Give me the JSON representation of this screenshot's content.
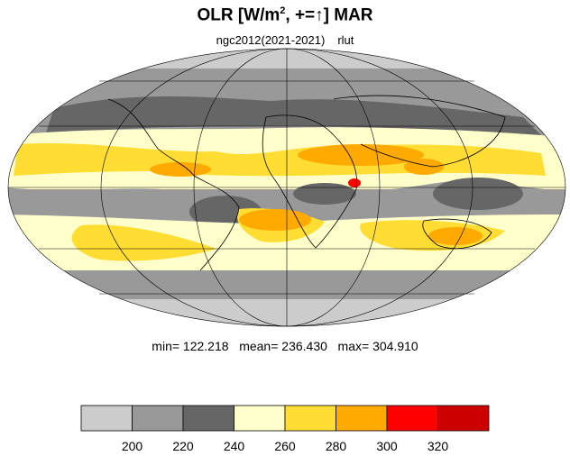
{
  "title": {
    "main": "OLR [W/m",
    "sup": "2",
    "rest": ", +=↑] MAR"
  },
  "subtitle": {
    "run": "ngc2012(2021-2021)",
    "variable": "rlut"
  },
  "stats": {
    "text": "min= 122.218   mean= 236.430   max= 304.910",
    "min": 122.218,
    "mean": 236.43,
    "max": 304.91
  },
  "map": {
    "projection": "mollweide",
    "field": "outgoing longwave radiation",
    "graticule": true
  },
  "colorbar": {
    "labels": [
      "200",
      "220",
      "240",
      "260",
      "280",
      "300",
      "320"
    ],
    "colors": [
      "#cccccc",
      "#999999",
      "#666666",
      "#ffffcc",
      "#ffdd33",
      "#ffaa00",
      "#ff0000",
      "#cc0000"
    ]
  },
  "palette": {
    "ocean_cold": "#cccccc",
    "cloud_mid": "#999999",
    "cloud_deep": "#666666",
    "pale": "#ffffcc",
    "yellow": "#ffdd33",
    "orange": "#ffaa00",
    "red": "#ff0000"
  }
}
